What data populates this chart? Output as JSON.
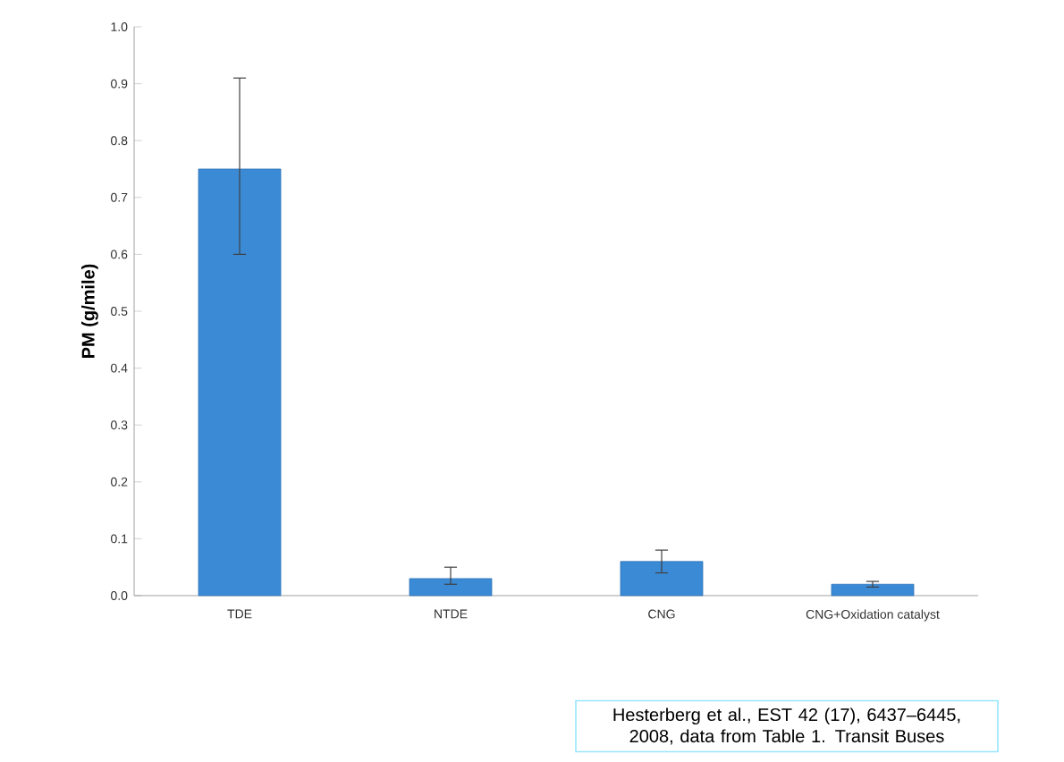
{
  "chart_data": {
    "type": "bar",
    "ylabel": "PM (g/mile)",
    "categories": [
      "TDE",
      "NTDE",
      "CNG",
      "CNG+Oxidation catalyst"
    ],
    "values": [
      0.75,
      0.03,
      0.06,
      0.02
    ],
    "errors": [
      [
        0.6,
        0.91
      ],
      [
        0.02,
        0.05
      ],
      [
        0.04,
        0.08
      ],
      [
        0.015,
        0.025
      ]
    ],
    "color": "#3a8ad6",
    "ylim": [
      0,
      1.0
    ],
    "yticks": [
      {
        "value": 0,
        "label": "0.0"
      },
      {
        "value": 0.1,
        "label": "0.1"
      },
      {
        "value": 0.2,
        "label": "0.2"
      },
      {
        "value": 0.3,
        "label": "0.3"
      },
      {
        "value": 0.4,
        "label": "0.4"
      },
      {
        "value": 0.5,
        "label": "0.5"
      },
      {
        "value": 0.6,
        "label": "0.6"
      },
      {
        "value": 0.7,
        "label": "0.7"
      },
      {
        "value": 0.8,
        "label": "0.8"
      },
      {
        "value": 0.9,
        "label": "0.9"
      },
      {
        "value": 1.0,
        "label": "1.0"
      }
    ],
    "grid": false,
    "annotations": [
      "Hesterberg et al., EST 42 (17), 6437–6445, 2008, data from Table 1. Transit Buses"
    ]
  }
}
